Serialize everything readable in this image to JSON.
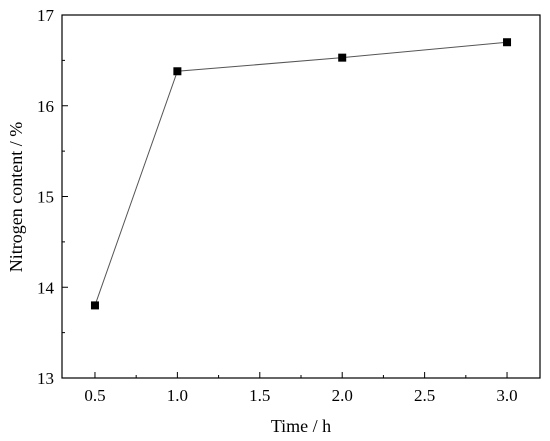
{
  "chart_data": {
    "type": "line",
    "xlabel": "Time / h",
    "ylabel": "Nitrogen content / %",
    "xlim": [
      0.3,
      3.2
    ],
    "ylim": [
      13,
      17
    ],
    "xticks": [
      "0.5",
      "1.0",
      "1.5",
      "2.0",
      "2.5",
      "3.0"
    ],
    "yticks": [
      "13",
      "14",
      "15",
      "16",
      "17"
    ],
    "x": [
      0.5,
      1.0,
      2.0,
      3.0
    ],
    "y": [
      13.8,
      16.38,
      16.53,
      16.7
    ],
    "marker": "square",
    "color": "#000000",
    "line_color": "#555555",
    "grid": false
  }
}
